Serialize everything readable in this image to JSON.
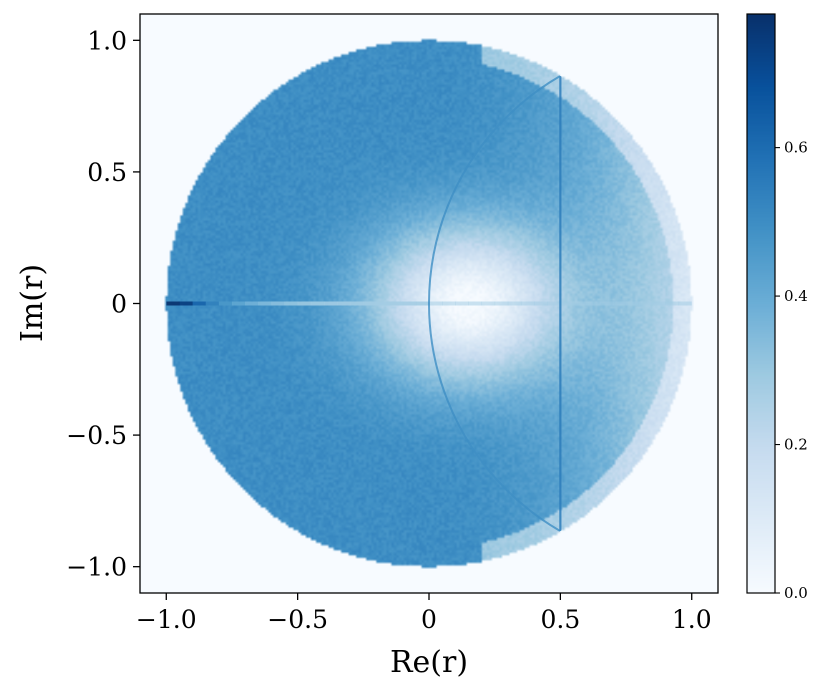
{
  "chart_data": {
    "type": "heatmap",
    "title": "",
    "xlabel": "Re(r)",
    "ylabel": "Im(r)",
    "xlim": [
      -1.1,
      1.1
    ],
    "ylim": [
      -1.1,
      1.1
    ],
    "grid": false,
    "x_ticks": [
      {
        "value": -1.0,
        "label": "−1.0"
      },
      {
        "value": -0.5,
        "label": "−0.5"
      },
      {
        "value": 0.0,
        "label": "0"
      },
      {
        "value": 0.5,
        "label": "0.5"
      },
      {
        "value": 1.0,
        "label": "1.0"
      }
    ],
    "y_ticks": [
      {
        "value": -1.0,
        "label": "−1.0"
      },
      {
        "value": -0.5,
        "label": "−0.5"
      },
      {
        "value": 0.0,
        "label": "0"
      },
      {
        "value": 0.5,
        "label": "0.5"
      },
      {
        "value": 1.0,
        "label": "1.0"
      }
    ],
    "colormap": "Blues",
    "colors": [
      "#f7fbff",
      "#deebf7",
      "#c6dbef",
      "#9ecae1",
      "#6baed6",
      "#4292c6",
      "#2171b5",
      "#08519c",
      "#08306b"
    ],
    "colorbar": {
      "range": [
        0.0,
        0.78
      ],
      "ticks": [
        {
          "value": 0.0,
          "label": "0.0"
        },
        {
          "value": 0.2,
          "label": "0.2"
        },
        {
          "value": 0.4,
          "label": "0.4"
        },
        {
          "value": 0.6,
          "label": "0.6"
        }
      ]
    },
    "support": "unit disk |r| ≤ 1",
    "features": [
      {
        "kind": "horizontal-ridge",
        "from_re": -1.0,
        "to_re": 1.0,
        "im": 0.0,
        "peak_value": 0.75,
        "peak_at_re": -1.0
      },
      {
        "kind": "vertical-line",
        "re": 0.5,
        "from_im": -0.866,
        "to_im": 0.866,
        "value": 0.55
      },
      {
        "kind": "arc",
        "center_re": 1.0,
        "center_im": 0.0,
        "radius": 1.0,
        "value": 0.5
      }
    ]
  }
}
